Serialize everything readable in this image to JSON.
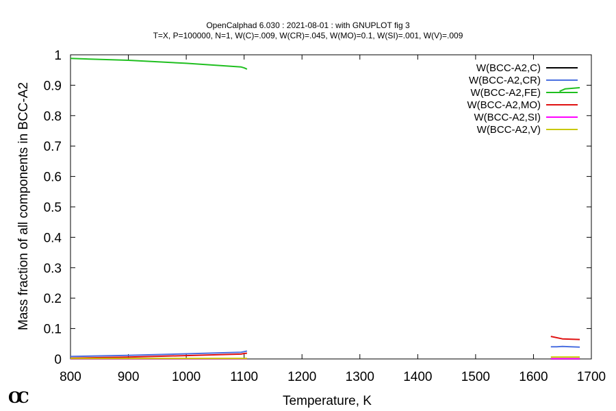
{
  "chart_data": {
    "type": "line",
    "title": "OpenCalphad    6.030 :  2021-08-01 : with GNUPLOT fig 3",
    "subtitle": "T=X,  P=100000, N=1, W(C)=.009, W(CR)=.045, W(MO)=0.1, W(SI)=.001, W(V)=.009",
    "xlabel": "Temperature, K",
    "ylabel": "Mass fraction of all components in BCC-A2",
    "xlim": [
      800,
      1700
    ],
    "ylim": [
      0,
      1
    ],
    "xticks": [
      "800",
      "900",
      "1000",
      "1100",
      "1200",
      "1300",
      "1400",
      "1500",
      "1600",
      "1700"
    ],
    "yticks": [
      "0",
      "0.1",
      "0.2",
      "0.3",
      "0.4",
      "0.5",
      "0.6",
      "0.7",
      "0.8",
      "0.9",
      "1"
    ],
    "grid": false,
    "legend_position": "top-right",
    "series": [
      {
        "name": "W(BCC-A2,C)",
        "color": "#000000",
        "segments": [
          [
            [
              800,
              0.0005
            ],
            [
              1100,
              0.0005
            ],
            [
              1105,
              0.0005
            ]
          ],
          [
            [
              1630,
              0.0003
            ],
            [
              1680,
              0.0003
            ]
          ]
        ]
      },
      {
        "name": "W(BCC-A2,CR)",
        "color": "#4a6fe0",
        "segments": [
          [
            [
              800,
              0.008
            ],
            [
              900,
              0.012
            ],
            [
              1000,
              0.017
            ],
            [
              1095,
              0.022
            ],
            [
              1100,
              0.024
            ],
            [
              1105,
              0.026
            ]
          ],
          [
            [
              1630,
              0.04
            ],
            [
              1640,
              0.04
            ],
            [
              1650,
              0.041
            ],
            [
              1680,
              0.039
            ]
          ]
        ]
      },
      {
        "name": "W(BCC-A2,FE)",
        "color": "#1fbf1f",
        "segments": [
          [
            [
              800,
              0.988
            ],
            [
              900,
              0.982
            ],
            [
              1000,
              0.972
            ],
            [
              1095,
              0.96
            ],
            [
              1100,
              0.957
            ],
            [
              1105,
              0.953
            ]
          ],
          [
            [
              1645,
              0.88
            ],
            [
              1655,
              0.888
            ],
            [
              1680,
              0.892
            ]
          ]
        ]
      },
      {
        "name": "W(BCC-A2,MO)",
        "color": "#e01010",
        "segments": [
          [
            [
              800,
              0.003
            ],
            [
              900,
              0.006
            ],
            [
              1000,
              0.011
            ],
            [
              1095,
              0.016
            ],
            [
              1100,
              0.018
            ],
            [
              1105,
              0.019
            ]
          ],
          [
            [
              1630,
              0.074
            ],
            [
              1650,
              0.066
            ],
            [
              1680,
              0.064
            ]
          ]
        ]
      },
      {
        "name": "W(BCC-A2,SI)",
        "color": "#ff00ff",
        "segments": [
          [
            [
              800,
              0.001
            ],
            [
              1105,
              0.001
            ]
          ],
          [
            [
              1630,
              0.001
            ],
            [
              1680,
              0.001
            ]
          ]
        ]
      },
      {
        "name": "W(BCC-A2,V)",
        "color": "#c8c800",
        "segments": [
          [
            [
              800,
              0.0015
            ],
            [
              1105,
              0.0015
            ]
          ],
          [
            [
              1630,
              0.006
            ],
            [
              1680,
              0.006
            ]
          ]
        ]
      }
    ]
  },
  "logo_text": "OC"
}
